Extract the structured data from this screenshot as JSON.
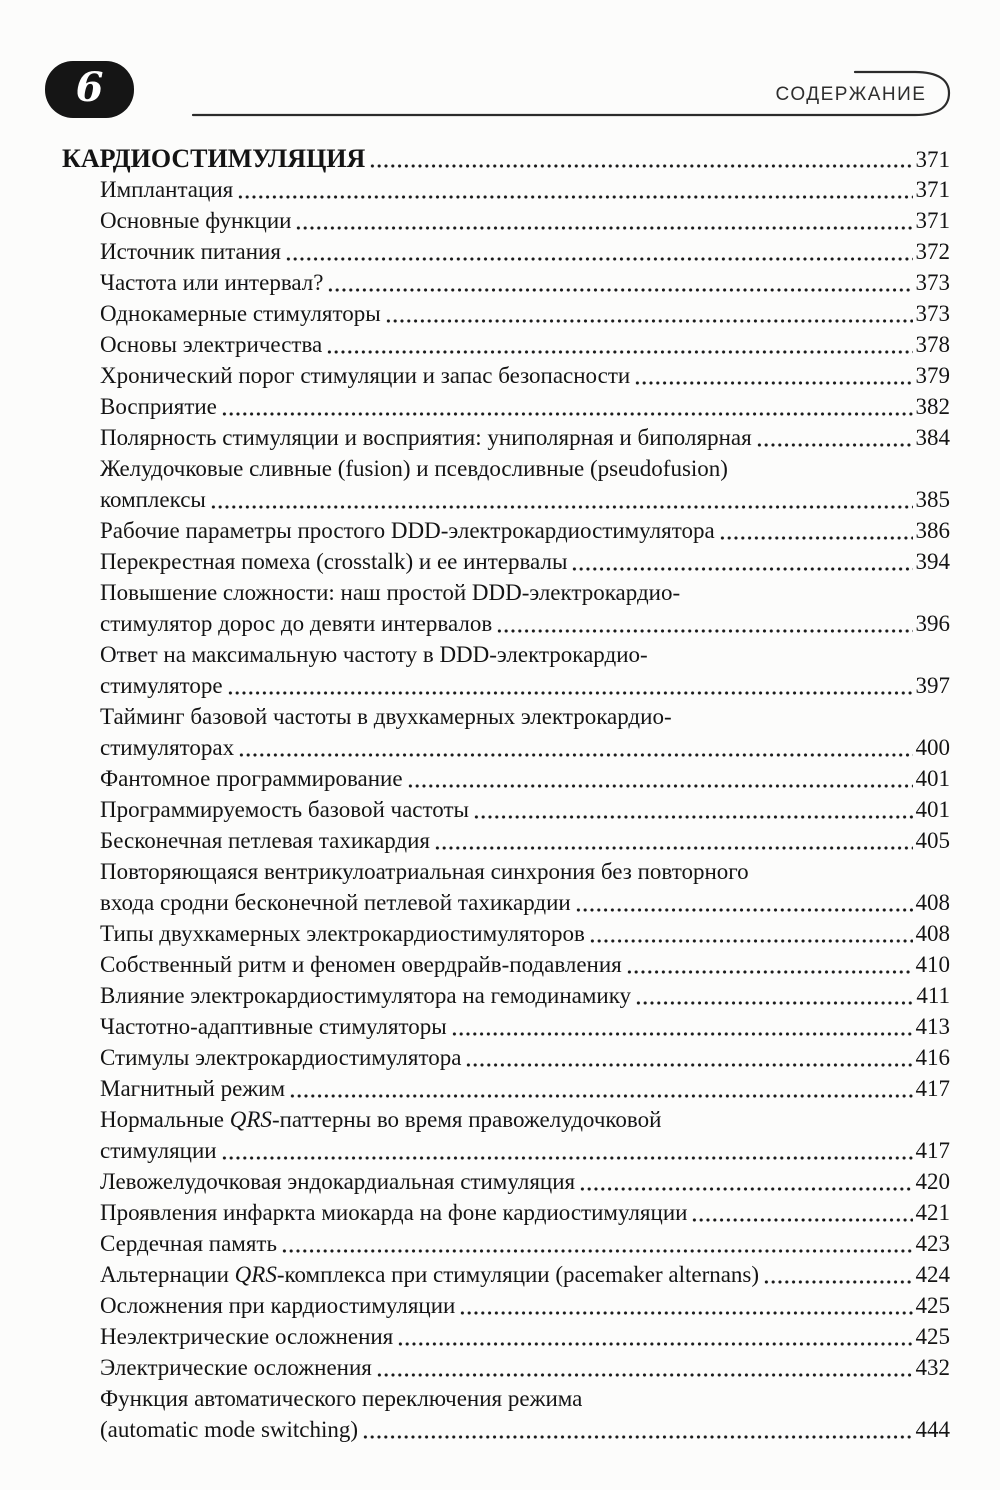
{
  "colors": {
    "ink": "#141414",
    "paper": "#fcfcfb",
    "badge_background": "#151515",
    "badge_text": "#ffffff"
  },
  "header": {
    "page_number": "6",
    "contents_label": "СОДЕРЖАНИЕ"
  },
  "toc": {
    "rows": [
      {
        "indent": 0,
        "chapter": true,
        "segments": [
          {
            "text": "КАРДИОСТИМУЛЯЦИЯ"
          }
        ],
        "page": "371"
      },
      {
        "indent": 1,
        "segments": [
          {
            "text": "Имплантация"
          }
        ],
        "page": "371"
      },
      {
        "indent": 1,
        "segments": [
          {
            "text": "Основные функции"
          }
        ],
        "page": "371"
      },
      {
        "indent": 1,
        "segments": [
          {
            "text": "Источник питания"
          }
        ],
        "page": "372"
      },
      {
        "indent": 1,
        "segments": [
          {
            "text": "Частота или интервал?"
          }
        ],
        "page": "373"
      },
      {
        "indent": 1,
        "segments": [
          {
            "text": "Однокамерные стимуляторы"
          }
        ],
        "page": "373"
      },
      {
        "indent": 1,
        "segments": [
          {
            "text": "Основы электричества"
          }
        ],
        "page": "378"
      },
      {
        "indent": 1,
        "segments": [
          {
            "text": "Хронический порог стимуляции и запас безопасности"
          }
        ],
        "page": "379"
      },
      {
        "indent": 1,
        "segments": [
          {
            "text": "Восприятие"
          }
        ],
        "page": "382"
      },
      {
        "indent": 1,
        "segments": [
          {
            "text": "Полярность стимуляции и восприятия: униполярная и биполярная"
          }
        ],
        "page": "384"
      },
      {
        "indent": 1,
        "segments": [
          {
            "text": "Желудочковые сливные (fusion) и псевдосливные (pseudofusion)"
          }
        ],
        "page": ""
      },
      {
        "indent": 1,
        "segments": [
          {
            "text": "комплексы"
          }
        ],
        "page": "385"
      },
      {
        "indent": 1,
        "segments": [
          {
            "text": "Рабочие параметры простого DDD-электрокардиостимулятора"
          }
        ],
        "page": "386"
      },
      {
        "indent": 1,
        "segments": [
          {
            "text": "Перекрестная помеха (crosstalk) и ее интервалы"
          }
        ],
        "page": "394"
      },
      {
        "indent": 1,
        "segments": [
          {
            "text": "Повышение сложности: наш простой DDD-электрокардио-"
          }
        ],
        "page": ""
      },
      {
        "indent": 1,
        "segments": [
          {
            "text": "стимулятор дорос до девяти интервалов"
          }
        ],
        "page": "396"
      },
      {
        "indent": 1,
        "segments": [
          {
            "text": "Ответ на максимальную частоту в DDD-электрокардио-"
          }
        ],
        "page": ""
      },
      {
        "indent": 1,
        "segments": [
          {
            "text": "стимуляторе"
          }
        ],
        "page": "397"
      },
      {
        "indent": 1,
        "segments": [
          {
            "text": "Тайминг базовой частоты в двухкамерных электрокардио-"
          }
        ],
        "page": ""
      },
      {
        "indent": 1,
        "segments": [
          {
            "text": "стимуляторах"
          }
        ],
        "page": "400"
      },
      {
        "indent": 1,
        "segments": [
          {
            "text": "Фантомное программирование"
          }
        ],
        "page": "401"
      },
      {
        "indent": 1,
        "segments": [
          {
            "text": "Программируемость базовой частоты"
          }
        ],
        "page": "401"
      },
      {
        "indent": 1,
        "segments": [
          {
            "text": "Бесконечная петлевая тахикардия"
          }
        ],
        "page": "405"
      },
      {
        "indent": 1,
        "segments": [
          {
            "text": "Повторяющаяся вентрикулоатриальная синхрония без повторного"
          }
        ],
        "page": ""
      },
      {
        "indent": 1,
        "segments": [
          {
            "text": "входа сродни бесконечной петлевой тахикардии"
          }
        ],
        "page": "408"
      },
      {
        "indent": 1,
        "segments": [
          {
            "text": "Типы двухкамерных электрокардиостимуляторов"
          }
        ],
        "page": "408"
      },
      {
        "indent": 1,
        "segments": [
          {
            "text": "Собственный ритм и феномен овердрайв-подавления"
          }
        ],
        "page": "410"
      },
      {
        "indent": 1,
        "segments": [
          {
            "text": "Влияние электрокардиостимулятора на гемодинамику"
          }
        ],
        "page": "411"
      },
      {
        "indent": 1,
        "segments": [
          {
            "text": "Частотно-адаптивные стимуляторы"
          }
        ],
        "page": "413"
      },
      {
        "indent": 1,
        "segments": [
          {
            "text": "Стимулы электрокардиостимулятора"
          }
        ],
        "page": "416"
      },
      {
        "indent": 1,
        "segments": [
          {
            "text": "Магнитный режим"
          }
        ],
        "page": "417"
      },
      {
        "indent": 1,
        "segments": [
          {
            "text": "Нормальные "
          },
          {
            "text": "QRS",
            "italic": true
          },
          {
            "text": "-паттерны во время правожелудочковой"
          }
        ],
        "page": ""
      },
      {
        "indent": 1,
        "segments": [
          {
            "text": "стимуляции"
          }
        ],
        "page": "417"
      },
      {
        "indent": 1,
        "segments": [
          {
            "text": "Левожелудочковая эндокардиальная стимуляция"
          }
        ],
        "page": "420"
      },
      {
        "indent": 1,
        "segments": [
          {
            "text": "Проявления инфаркта миокарда на фоне кардиостимуляции"
          }
        ],
        "page": "421"
      },
      {
        "indent": 1,
        "segments": [
          {
            "text": "Сердечная память"
          }
        ],
        "page": "423"
      },
      {
        "indent": 1,
        "segments": [
          {
            "text": "Альтернации "
          },
          {
            "text": "QRS",
            "italic": true
          },
          {
            "text": "-комплекса при стимуляции (pacemaker alternans)"
          }
        ],
        "page": "424"
      },
      {
        "indent": 1,
        "segments": [
          {
            "text": "Осложнения при кардиостимуляции"
          }
        ],
        "page": "425"
      },
      {
        "indent": 1,
        "segments": [
          {
            "text": "Неэлектрические осложнения"
          }
        ],
        "page": "425"
      },
      {
        "indent": 1,
        "segments": [
          {
            "text": "Электрические осложнения"
          }
        ],
        "page": "432"
      },
      {
        "indent": 1,
        "segments": [
          {
            "text": "Функция автоматического переключения режима"
          }
        ],
        "page": ""
      },
      {
        "indent": 1,
        "segments": [
          {
            "text": "(automatic mode switching)"
          }
        ],
        "page": "444"
      }
    ]
  }
}
